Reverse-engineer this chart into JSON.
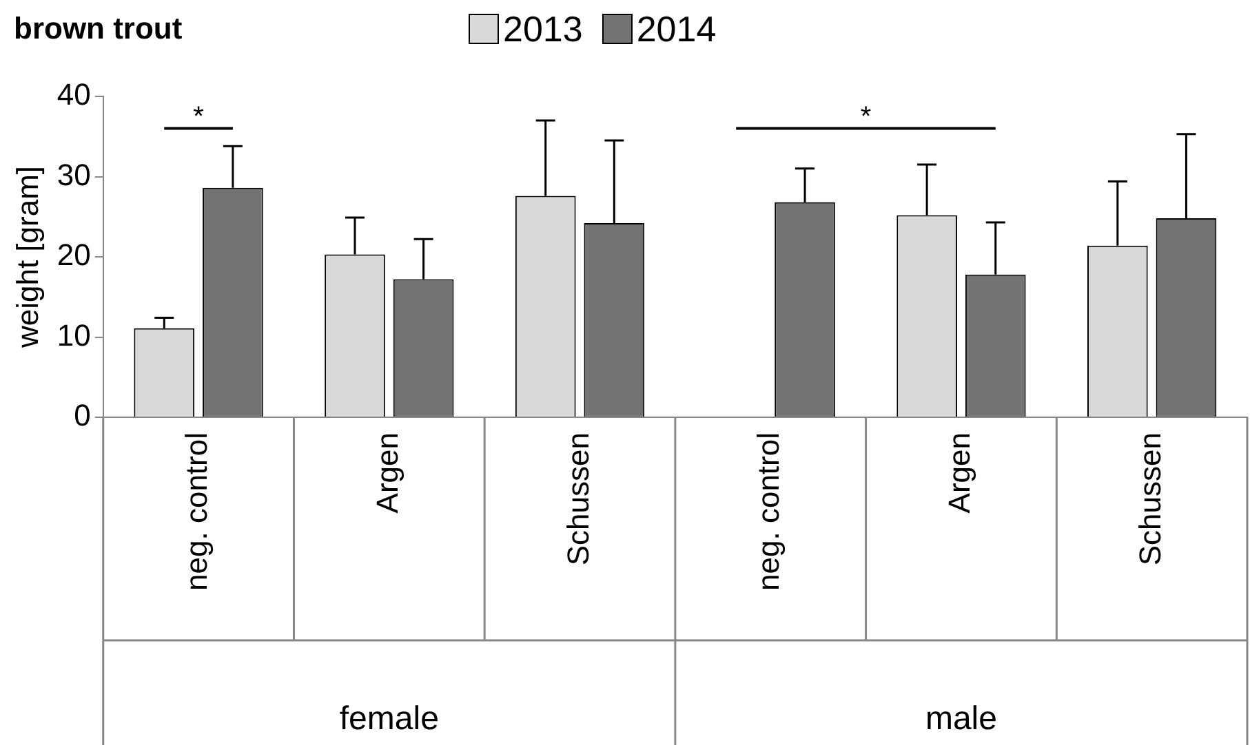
{
  "chart_data": {
    "type": "bar",
    "title": "brown trout",
    "ylabel": "weight [gram]",
    "categories": [
      "neg. control",
      "Argen",
      "Schussen",
      "neg. control",
      "Argen",
      "Schussen"
    ],
    "series": [
      {
        "name": "2013",
        "color": "#d9d9d9",
        "values": [
          11.1,
          20.3,
          27.6,
          null,
          25.2,
          21.4
        ],
        "errors": [
          [
            11.1,
            12.4
          ],
          [
            20.3,
            24.9
          ],
          [
            27.6,
            37
          ],
          null,
          [
            25.2,
            31.5
          ],
          [
            21.4,
            29.4
          ]
        ]
      },
      {
        "name": "2014",
        "color": "#737373",
        "values": [
          28.6,
          17.2,
          24.2,
          26.8,
          17.8,
          24.8
        ],
        "errors": [
          [
            28.6,
            33.8
          ],
          [
            17.2,
            22.2
          ],
          [
            24.2,
            34.5
          ],
          [
            26.8,
            31
          ],
          [
            17.8,
            24.3
          ],
          [
            24.8,
            35.3
          ]
        ]
      }
    ],
    "ylim": [
      0,
      40
    ],
    "yticks": [
      0,
      10,
      20,
      30,
      40
    ],
    "grid": false,
    "legend": "top",
    "annotations": [
      "*",
      "*",
      "female",
      "male"
    ]
  }
}
